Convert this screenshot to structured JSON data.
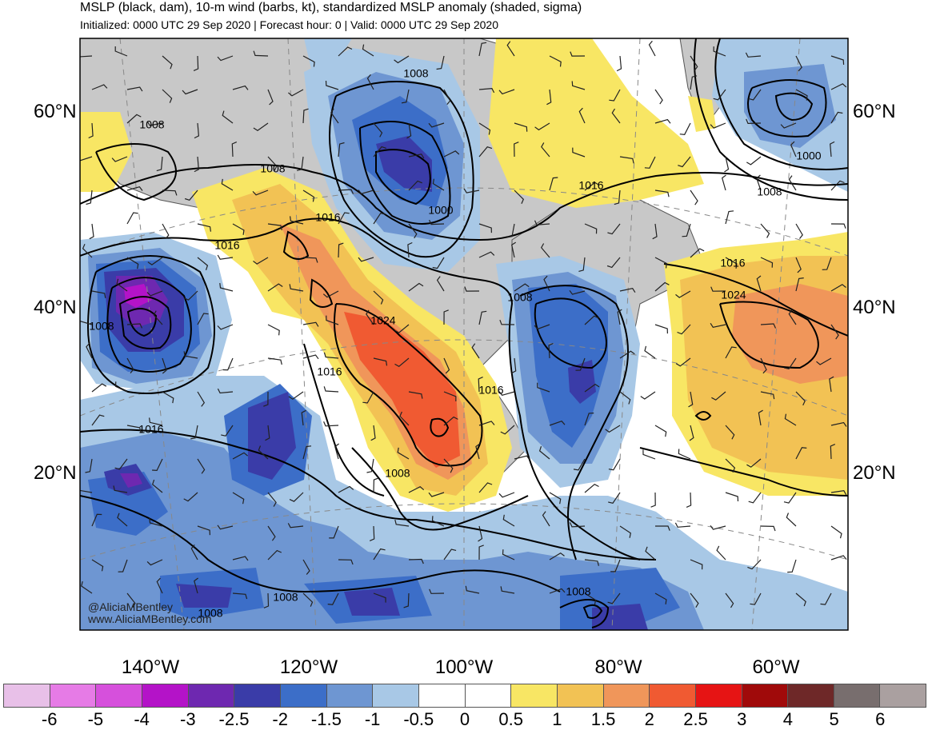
{
  "title": "MSLP (black, dam), 10-m wind (barbs, kt), standardized MSLP anomaly (shaded, sigma)",
  "subtitle": "Initialized: 0000 UTC 29 Sep 2020 | Forecast hour: 0 | Valid: 0000 UTC 29 Sep 2020",
  "lat_labels": [
    "60°N",
    "40°N",
    "20°N"
  ],
  "lon_labels": [
    "140°W",
    "120°W",
    "100°W",
    "80°W",
    "60°W"
  ],
  "credit": [
    "@AliciaMBentley",
    "www.AliciaMBentley.com"
  ],
  "isobar_labels": [
    "1008",
    "1008",
    "1008",
    "1000",
    "1016",
    "1016",
    "1008",
    "1024",
    "1016",
    "1016",
    "1016",
    "1008",
    "1008",
    "1016",
    "1024",
    "1016",
    "1000",
    "1008",
    "1008",
    "1008",
    "1008"
  ],
  "colorbar": {
    "colors": [
      "#e8c0e8",
      "#e67be6",
      "#d650dc",
      "#b413c8",
      "#6e28b0",
      "#3a3ca8",
      "#3c6ec8",
      "#6e96d2",
      "#a8c8e6",
      "#ffffff",
      "#ffffff",
      "#f8e664",
      "#f2c254",
      "#f0965a",
      "#f05a32",
      "#e61414",
      "#a00a0a",
      "#6e2828",
      "#786e6e",
      "#aaa0a0"
    ],
    "ticks": [
      "-6",
      "-5",
      "-4",
      "-3",
      "-2.5",
      "-2",
      "-1.5",
      "-1",
      "-0.5",
      "0",
      "0.5",
      "1",
      "1.5",
      "2",
      "2.5",
      "3",
      "4",
      "5",
      "6"
    ]
  }
}
